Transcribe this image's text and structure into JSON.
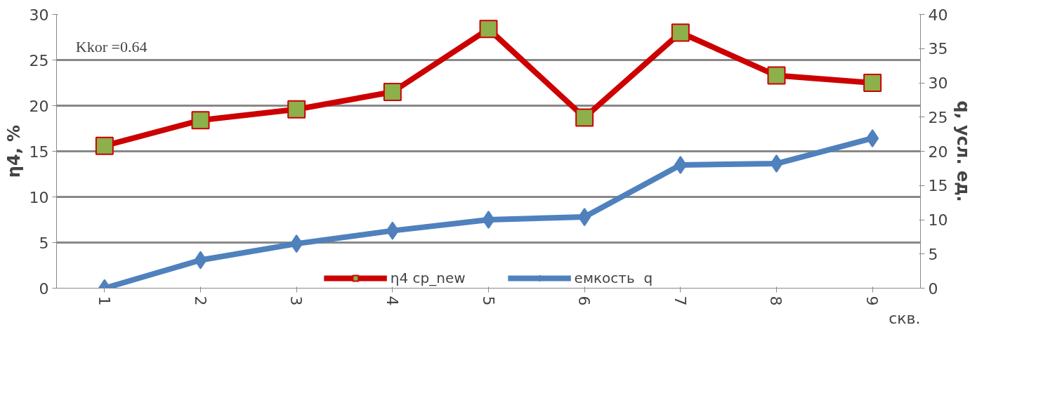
{
  "chart_data": {
    "type": "line",
    "categories": [
      "1",
      "2",
      "3",
      "4",
      "5",
      "6",
      "7",
      "8",
      "9"
    ],
    "xlabel": "скв.",
    "ylabel": "η4, %",
    "y2label": "q, усл. ед.",
    "ylim": [
      0,
      30
    ],
    "yticks": [
      0,
      5,
      10,
      15,
      20,
      25,
      30
    ],
    "y2lim": [
      0,
      40
    ],
    "y2ticks": [
      0,
      5,
      10,
      15,
      20,
      25,
      30,
      35,
      40
    ],
    "grid": "y",
    "legend": "bottom",
    "line_style": "solid",
    "annotations": [
      "Kkor =0.64"
    ],
    "series": [
      {
        "name": "η4 cp_new",
        "color": "#cc0000",
        "marker": "square",
        "values": [
          15.6,
          18.4,
          19.6,
          21.5,
          28.4,
          18.7,
          28.0,
          23.3,
          22.5
        ]
      },
      {
        "name": "емкость  q",
        "color": "#4f81bd",
        "marker": "diamond",
        "axis": "y2",
        "values": [
          0,
          4.1,
          6.5,
          8.4,
          10.0,
          10.4,
          18.0,
          18.2,
          21.9
        ]
      }
    ]
  }
}
